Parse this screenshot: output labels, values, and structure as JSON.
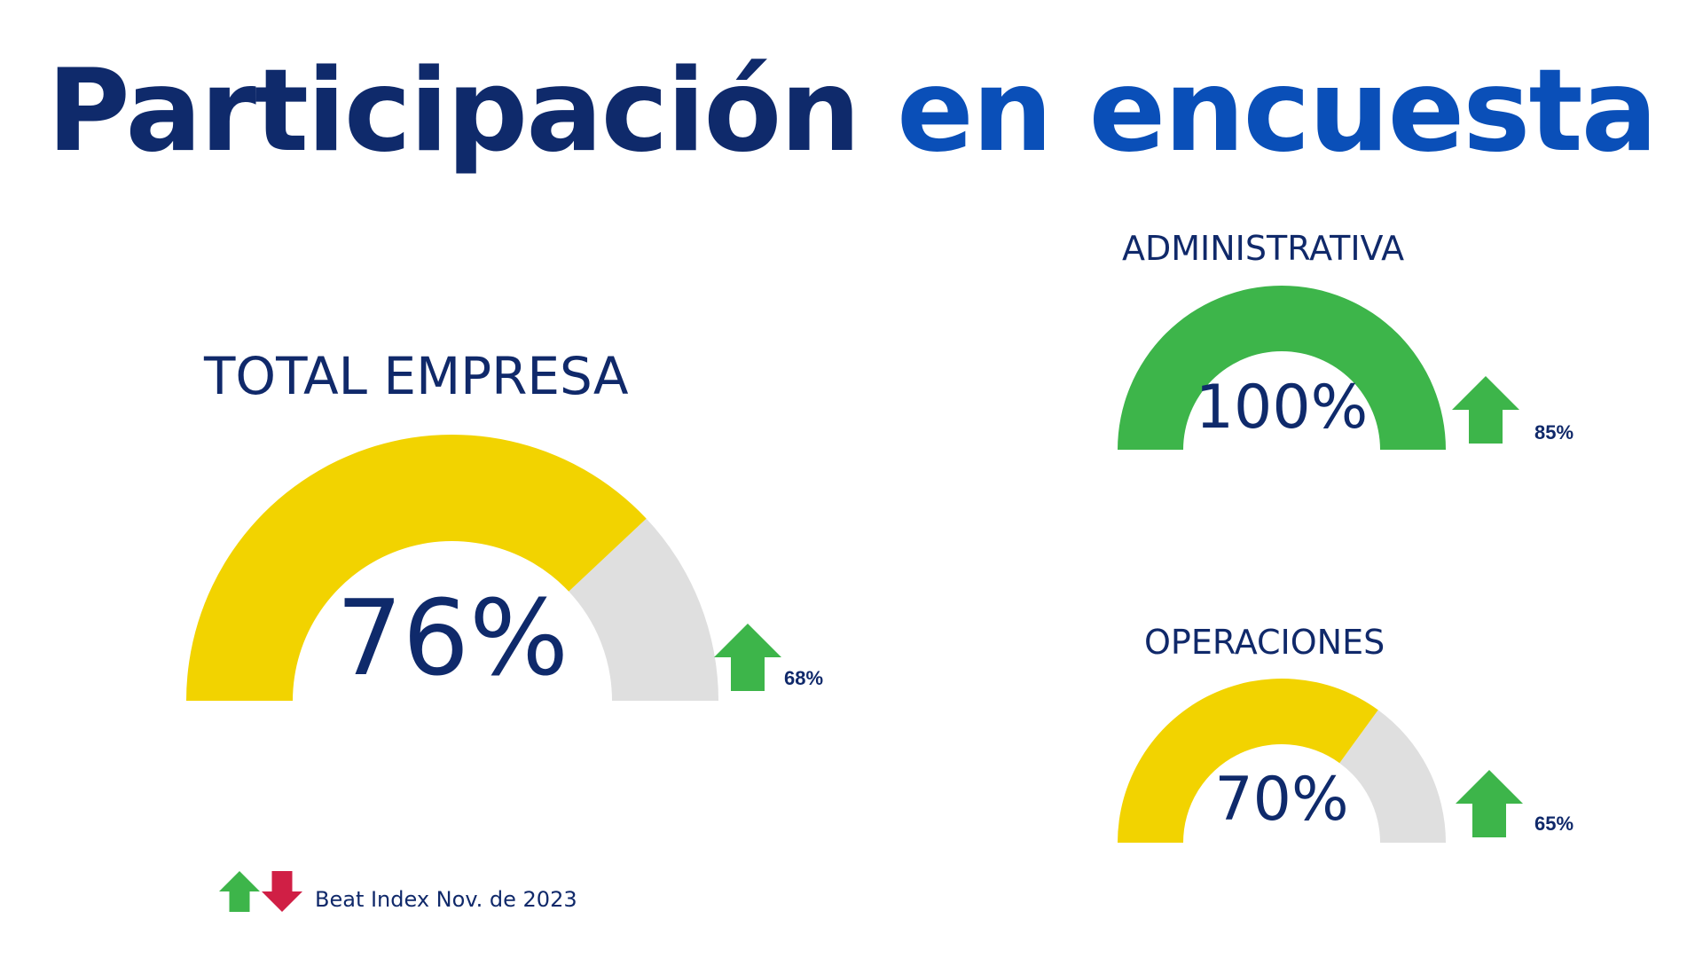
{
  "title": {
    "part1": "Participación",
    "part2": "en encuesta"
  },
  "colors": {
    "navy": "#0f2a6b",
    "blue": "#0a4fb8",
    "yellow": "#f2d300",
    "green": "#3db54a",
    "gray": "#dfdfdf",
    "red": "#d01f45"
  },
  "chart_data": [
    {
      "type": "gauge",
      "title": "TOTAL EMPRESA",
      "value": 76,
      "value_label": "76%",
      "previous_label": "68%",
      "trend": "up",
      "fill_color": "#f2d300",
      "max": 100
    },
    {
      "type": "gauge",
      "title": "ADMINISTRATIVA",
      "value": 100,
      "value_label": "100%",
      "previous_label": "85%",
      "trend": "up",
      "fill_color": "#3db54a",
      "max": 100
    },
    {
      "type": "gauge",
      "title": "OPERACIONES",
      "value": 70,
      "value_label": "70%",
      "previous_label": "65%",
      "trend": "up",
      "fill_color": "#f2d300",
      "max": 100
    }
  ],
  "legend": {
    "text": "Beat Index Nov. de 2023"
  }
}
